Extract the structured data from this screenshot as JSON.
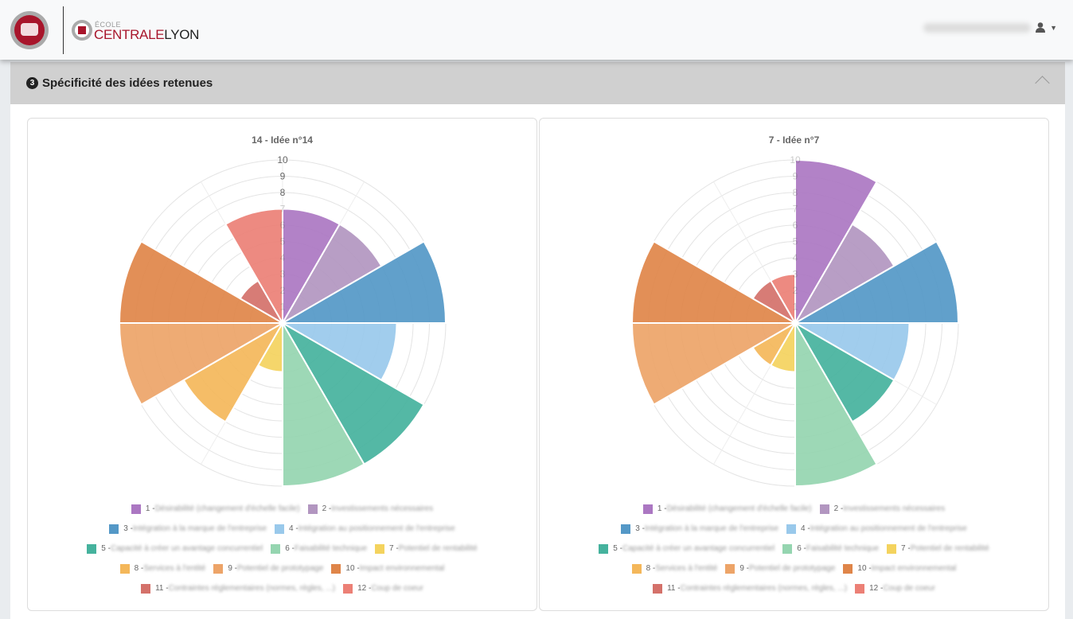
{
  "header": {
    "school_small": "ÉCOLE",
    "school_centrale": "CENTRALE",
    "school_lyon": "LYON",
    "user_icon": "user-icon",
    "caret_icon": "caret-down-icon"
  },
  "section": {
    "number": "3",
    "title": "Spécificité des idées retenues",
    "collapse_icon": "chevron-up-icon"
  },
  "categories": [
    "1 - Désirabilité (changement d'échelle facile)",
    "2 - Investissements nécessaires",
    "3 - Intégration à la marque de l'entreprise",
    "4 - Intégration au positionnement de l'entreprise",
    "5 - Capacité à créer un avantage concurrentiel",
    "6 - Faisabilité technique",
    "7 - Potentiel de rentabilité",
    "8 - Services à l'entité",
    "9 - Potentiel de prototypage",
    "10 - Impact environnemental",
    "11 - Contraintes réglementaires (normes, règles, ...)",
    "12 - Coup de coeur"
  ],
  "colors": [
    "#ab77c2",
    "#b296c0",
    "#5498c7",
    "#99c9eb",
    "#45b29d",
    "#95d5b0",
    "#f4d35e",
    "#f4b75a",
    "#eda468",
    "#df8549",
    "#d4716a",
    "#ec8076"
  ],
  "chart_data": [
    {
      "type": "polarArea",
      "title": "14 - Idée n°14",
      "rlim": [
        0,
        10
      ],
      "ticks": [
        1,
        2,
        3,
        4,
        5,
        6,
        7,
        8,
        9,
        10
      ],
      "values": [
        7,
        7,
        10,
        7,
        10,
        10,
        3,
        7,
        10,
        10,
        3,
        7
      ]
    },
    {
      "type": "polarArea",
      "title": "7 - Idée n°7",
      "rlim": [
        0,
        10
      ],
      "ticks": [
        1,
        2,
        3,
        4,
        5,
        6,
        7,
        8,
        9,
        10
      ],
      "values": [
        10,
        7,
        10,
        7,
        7,
        10,
        3,
        3,
        10,
        10,
        3,
        3
      ]
    }
  ]
}
